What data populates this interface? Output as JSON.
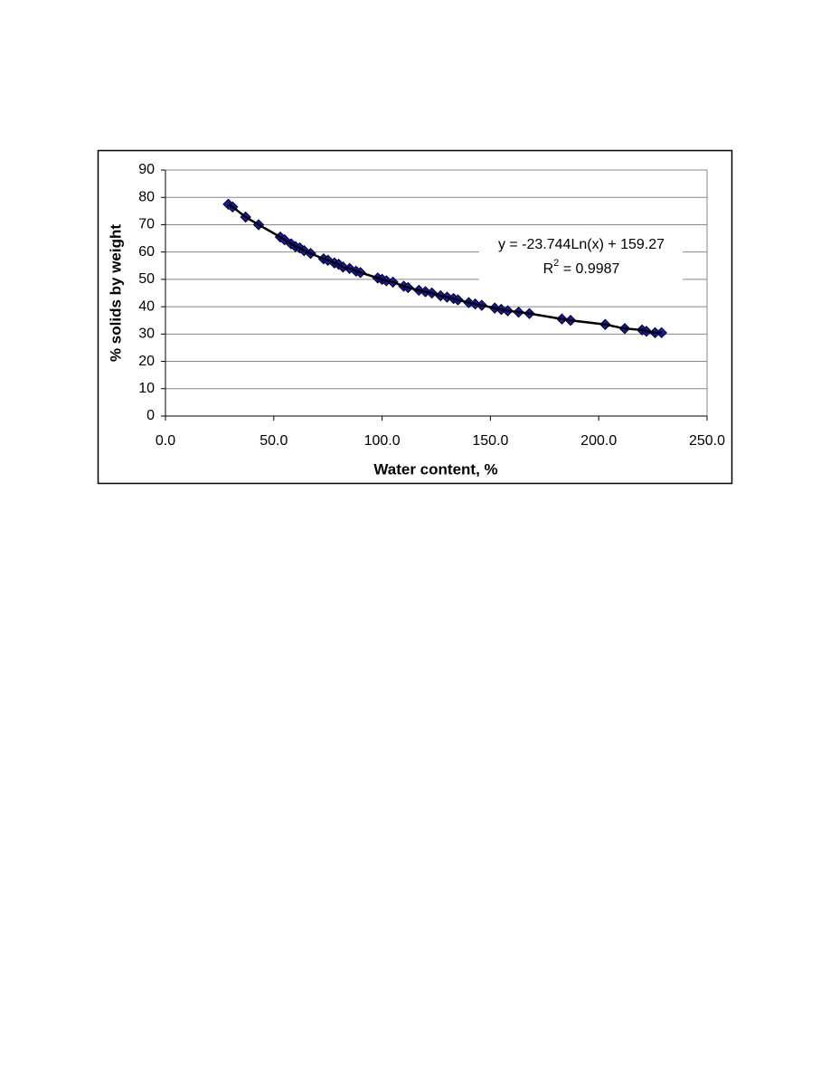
{
  "chart_data": {
    "type": "scatter",
    "xlabel": "Water content, %",
    "ylabel": "% solids by weight",
    "annotation": "y = -23.744Ln(x) + 159.27",
    "r_squared": {
      "base": "R",
      "sup": "2",
      "rest": " = 0.9987"
    },
    "xlim": [
      0,
      250
    ],
    "ylim": [
      0,
      90
    ],
    "xticks": [
      {
        "value": 0,
        "label": "0.0"
      },
      {
        "value": 50,
        "label": "50.0"
      },
      {
        "value": 100,
        "label": "100.0"
      },
      {
        "value": 150,
        "label": "150.0"
      },
      {
        "value": 200,
        "label": "200.0"
      },
      {
        "value": 250,
        "label": "250.0"
      }
    ],
    "yticks": [
      0,
      10,
      20,
      30,
      40,
      50,
      60,
      70,
      80,
      90
    ],
    "grid": true,
    "color": "#1a1a9c",
    "trendline_color": "#000000",
    "x": [
      29,
      31,
      37,
      43,
      53,
      55,
      58,
      60,
      62,
      64,
      67,
      73,
      75,
      78,
      80,
      82,
      85,
      88,
      90,
      98,
      100,
      102,
      105,
      110,
      112,
      117,
      120,
      123,
      127,
      130,
      133,
      135,
      140,
      143,
      146,
      152,
      155,
      158,
      163,
      168,
      183,
      187,
      203,
      212,
      220,
      222,
      226,
      229
    ],
    "values": [
      77.5,
      76.5,
      72.8,
      70,
      65.5,
      64.5,
      63,
      62,
      61.5,
      60.5,
      59.5,
      57.5,
      57,
      56,
      55.5,
      54.5,
      54,
      53,
      52.5,
      50.5,
      50,
      49.5,
      49,
      47.5,
      47,
      46,
      45.5,
      45,
      44,
      43.5,
      43,
      42.5,
      41.5,
      41,
      40.5,
      39.5,
      39,
      38.5,
      38,
      37.5,
      35.5,
      35,
      33.5,
      32,
      31.5,
      31,
      30.5,
      30.5
    ]
  }
}
